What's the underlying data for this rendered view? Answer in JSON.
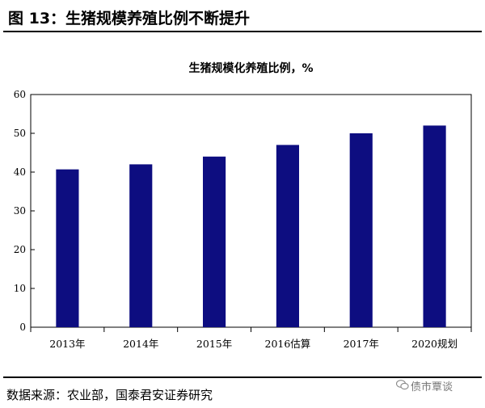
{
  "figure": {
    "title": "图 13：生猪规模养殖比例不断提升",
    "source": "数据来源：农业部，国泰君安证券研究",
    "watermark": "债市覃谈",
    "watermark_icon": "wechat-icon"
  },
  "chart_data": {
    "type": "bar",
    "title": "生猪规模化养殖比例，%",
    "categories": [
      "2013年",
      "2014年",
      "2015年",
      "2016估算",
      "2017年",
      "2020规划"
    ],
    "values": [
      40.7,
      42,
      44,
      47,
      50,
      52
    ],
    "ylim": [
      0,
      60
    ],
    "yticks": [
      0,
      10,
      20,
      30,
      40,
      50,
      60
    ],
    "xlabel": "",
    "ylabel": "",
    "bar_color": "#0d0d80",
    "grid": false,
    "legend": "none"
  }
}
